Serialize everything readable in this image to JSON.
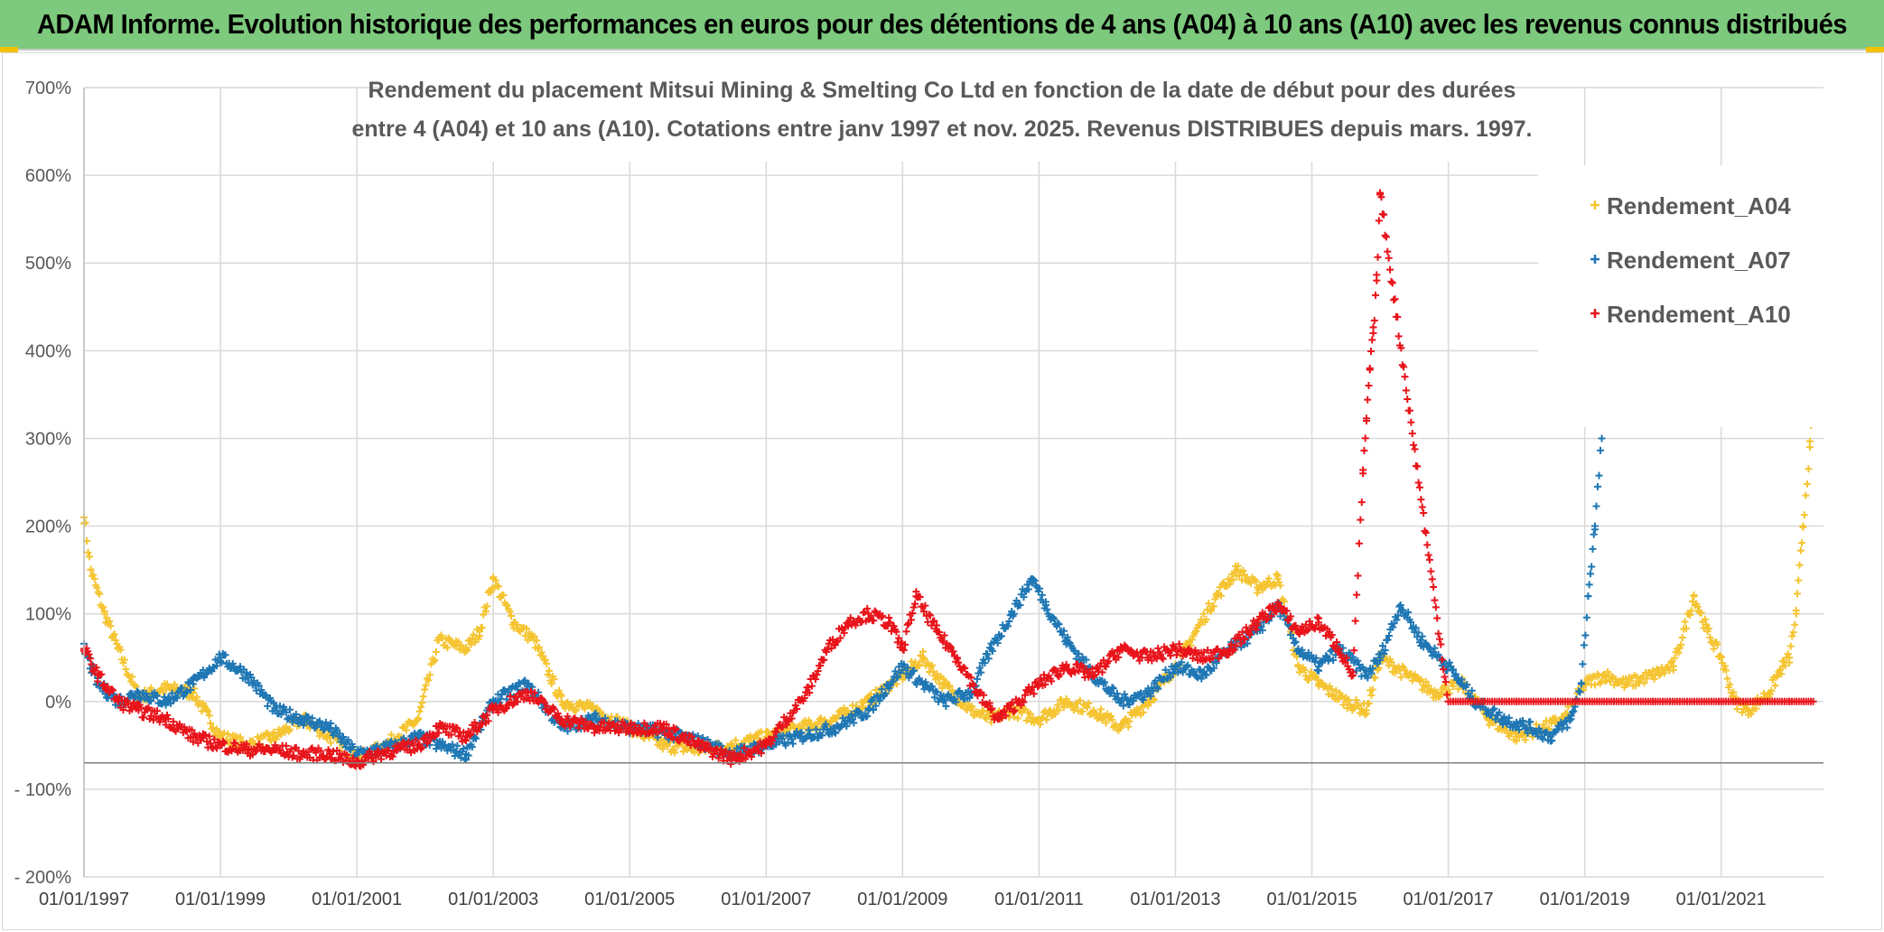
{
  "header": {
    "title": "ADAM Informe. Evolution historique des performances en euros pour des détentions de 4 ans (A04) à 10 ans (A10) avec les revenus connus distribués"
  },
  "colors": {
    "header_bg": "#7dc97d",
    "A04": "#f5c431",
    "A07": "#1f77b4",
    "A10": "#e8141b",
    "grid": "#d9d9d9"
  },
  "chart_data": {
    "type": "scatter",
    "title_lines": [
      "Rendement du placement Mitsui Mining & Smelting Co Ltd en fonction de la date de début pour des durées",
      "entre 4 (A04) et 10 ans (A10). Cotations entre janv 1997 et nov. 2025. Revenus DISTRIBUES depuis mars. 1997."
    ],
    "ylim": [
      -200,
      700
    ],
    "ylim_unit": "%",
    "yticks": [
      {
        "value": 700,
        "label": "700%"
      },
      {
        "value": 600,
        "label": "600%"
      },
      {
        "value": 500,
        "label": "500%"
      },
      {
        "value": 400,
        "label": "400%"
      },
      {
        "value": 300,
        "label": "300%"
      },
      {
        "value": 200,
        "label": "200%"
      },
      {
        "value": 100,
        "label": "100%"
      },
      {
        "value": 0,
        "label": "0%"
      },
      {
        "value": -100,
        "label": "- 100%"
      },
      {
        "value": -200,
        "label": "- 200%"
      }
    ],
    "xlim": [
      1997.0,
      2022.5
    ],
    "xticks": [
      {
        "value": 1997,
        "label": "01/01/1997"
      },
      {
        "value": 1999,
        "label": "01/01/1999"
      },
      {
        "value": 2001,
        "label": "01/01/2001"
      },
      {
        "value": 2003,
        "label": "01/01/2003"
      },
      {
        "value": 2005,
        "label": "01/01/2005"
      },
      {
        "value": 2007,
        "label": "01/01/2007"
      },
      {
        "value": 2009,
        "label": "01/01/2009"
      },
      {
        "value": 2011,
        "label": "01/01/2011"
      },
      {
        "value": 2013,
        "label": "01/01/2013"
      },
      {
        "value": 2015,
        "label": "01/01/2015"
      },
      {
        "value": 2017,
        "label": "01/01/2017"
      },
      {
        "value": 2019,
        "label": "01/01/2019"
      },
      {
        "value": 2021,
        "label": "01/01/2021"
      }
    ],
    "grid": true,
    "legend_position": "top-right",
    "marker": "+",
    "series": [
      {
        "name": "Rendement_A04",
        "color_key": "A04",
        "x": [
          1997.0,
          1997.1,
          1997.3,
          1997.5,
          1997.8,
          1998.2,
          1998.6,
          1999.0,
          1999.4,
          1999.8,
          2000.2,
          2000.6,
          2001.0,
          2001.3,
          2001.6,
          2001.9,
          2002.2,
          2002.6,
          2002.8,
          2003.0,
          2003.3,
          2003.6,
          2004.0,
          2004.5,
          2005.0,
          2005.5,
          2006.0,
          2006.5,
          2007.0,
          2007.5,
          2008.0,
          2008.5,
          2009.0,
          2009.3,
          2009.6,
          2010.0,
          2010.3,
          2010.6,
          2011.0,
          2011.4,
          2011.8,
          2012.2,
          2012.6,
          2013.0,
          2013.3,
          2013.6,
          2013.9,
          2014.2,
          2014.5,
          2014.8,
          2015.1,
          2015.5,
          2015.8,
          2016.0,
          2016.4,
          2016.8,
          2017.2,
          2017.6,
          2018.0,
          2018.4,
          2018.7,
          2019.0,
          2019.3,
          2019.6,
          2020.0,
          2020.3,
          2020.6,
          2020.8,
          2021.0,
          2021.2,
          2021.4,
          2021.7,
          2021.9,
          2022.0,
          2022.1,
          2022.2,
          2022.3,
          2022.35
        ],
        "y": [
          210,
          150,
          100,
          60,
          5,
          15,
          10,
          -40,
          -50,
          -40,
          -20,
          -40,
          -65,
          -55,
          -40,
          -20,
          70,
          60,
          80,
          140,
          90,
          70,
          0,
          -10,
          -30,
          -50,
          -55,
          -50,
          -40,
          -30,
          -20,
          0,
          30,
          50,
          20,
          -10,
          -20,
          -10,
          -20,
          0,
          -10,
          -30,
          0,
          40,
          80,
          120,
          150,
          130,
          140,
          40,
          20,
          0,
          -10,
          50,
          30,
          10,
          20,
          -20,
          -40,
          -30,
          -20,
          20,
          30,
          20,
          30,
          40,
          120,
          80,
          50,
          0,
          -10,
          10,
          40,
          50,
          100,
          200,
          290,
          350
        ]
      },
      {
        "name": "Rendement_A07",
        "color_key": "A07",
        "x": [
          1997.0,
          1997.2,
          1997.5,
          1997.8,
          1998.2,
          1998.6,
          1999.0,
          1999.4,
          1999.8,
          2000.2,
          2000.6,
          2001.0,
          2001.3,
          2001.6,
          2001.9,
          2002.2,
          2002.6,
          2003.0,
          2003.5,
          2004.0,
          2004.5,
          2005.0,
          2005.5,
          2006.0,
          2006.5,
          2007.0,
          2007.5,
          2008.0,
          2008.5,
          2009.0,
          2009.3,
          2009.6,
          2010.0,
          2010.3,
          2010.6,
          2010.9,
          2011.1,
          2011.4,
          2011.8,
          2012.2,
          2012.6,
          2013.0,
          2013.4,
          2013.8,
          2014.2,
          2014.5,
          2014.8,
          2015.1,
          2015.4,
          2015.8,
          2016.0,
          2016.3,
          2016.6,
          2017.0,
          2017.4,
          2017.8,
          2018.2,
          2018.5,
          2018.8,
          2018.95,
          2019.05,
          2019.15,
          2019.25
        ],
        "y": [
          60,
          20,
          0,
          10,
          0,
          20,
          50,
          30,
          -10,
          -20,
          -30,
          -60,
          -55,
          -50,
          -40,
          -50,
          -60,
          0,
          20,
          -30,
          -20,
          -30,
          -35,
          -45,
          -60,
          -50,
          -40,
          -30,
          -10,
          40,
          20,
          0,
          10,
          60,
          100,
          140,
          110,
          70,
          30,
          0,
          10,
          40,
          30,
          60,
          80,
          110,
          60,
          40,
          60,
          30,
          50,
          110,
          70,
          40,
          0,
          -20,
          -30,
          -40,
          -20,
          20,
          120,
          200,
          300
        ]
      },
      {
        "name": "Rendement_A10",
        "color_key": "A10",
        "x": [
          1997.0,
          1997.2,
          1997.5,
          1997.8,
          1998.2,
          1998.6,
          1999.0,
          1999.4,
          1999.8,
          2000.2,
          2000.6,
          2001.0,
          2001.3,
          2001.6,
          2001.9,
          2002.2,
          2002.6,
          2003.0,
          2003.5,
          2004.0,
          2004.5,
          2005.0,
          2005.5,
          2006.0,
          2006.5,
          2007.0,
          2007.3,
          2007.6,
          2007.9,
          2008.2,
          2008.5,
          2008.8,
          2009.0,
          2009.2,
          2009.5,
          2009.8,
          2010.1,
          2010.4,
          2010.7,
          2011.0,
          2011.4,
          2011.8,
          2012.2,
          2012.6,
          2013.0,
          2013.4,
          2013.8,
          2014.2,
          2014.5,
          2014.8,
          2015.1,
          2015.4,
          2015.6,
          2015.75,
          2015.8,
          2015.85,
          2015.9,
          2015.95,
          2016.0,
          2017.0,
          2018.0,
          2019.0,
          2020.0,
          2021.0,
          2022.0,
          2022.35
        ],
        "y": [
          60,
          30,
          0,
          -10,
          -20,
          -40,
          -50,
          -55,
          -55,
          -60,
          -60,
          -70,
          -60,
          -55,
          -50,
          -30,
          -40,
          -10,
          10,
          -20,
          -30,
          -30,
          -30,
          -50,
          -65,
          -50,
          -20,
          10,
          60,
          90,
          100,
          90,
          60,
          120,
          80,
          50,
          10,
          -20,
          0,
          20,
          40,
          30,
          60,
          50,
          60,
          50,
          60,
          90,
          110,
          80,
          90,
          60,
          30,
          260,
          320,
          380,
          420,
          480,
          580,
          0,
          0,
          0,
          0,
          0,
          0,
          0
        ]
      }
    ]
  }
}
